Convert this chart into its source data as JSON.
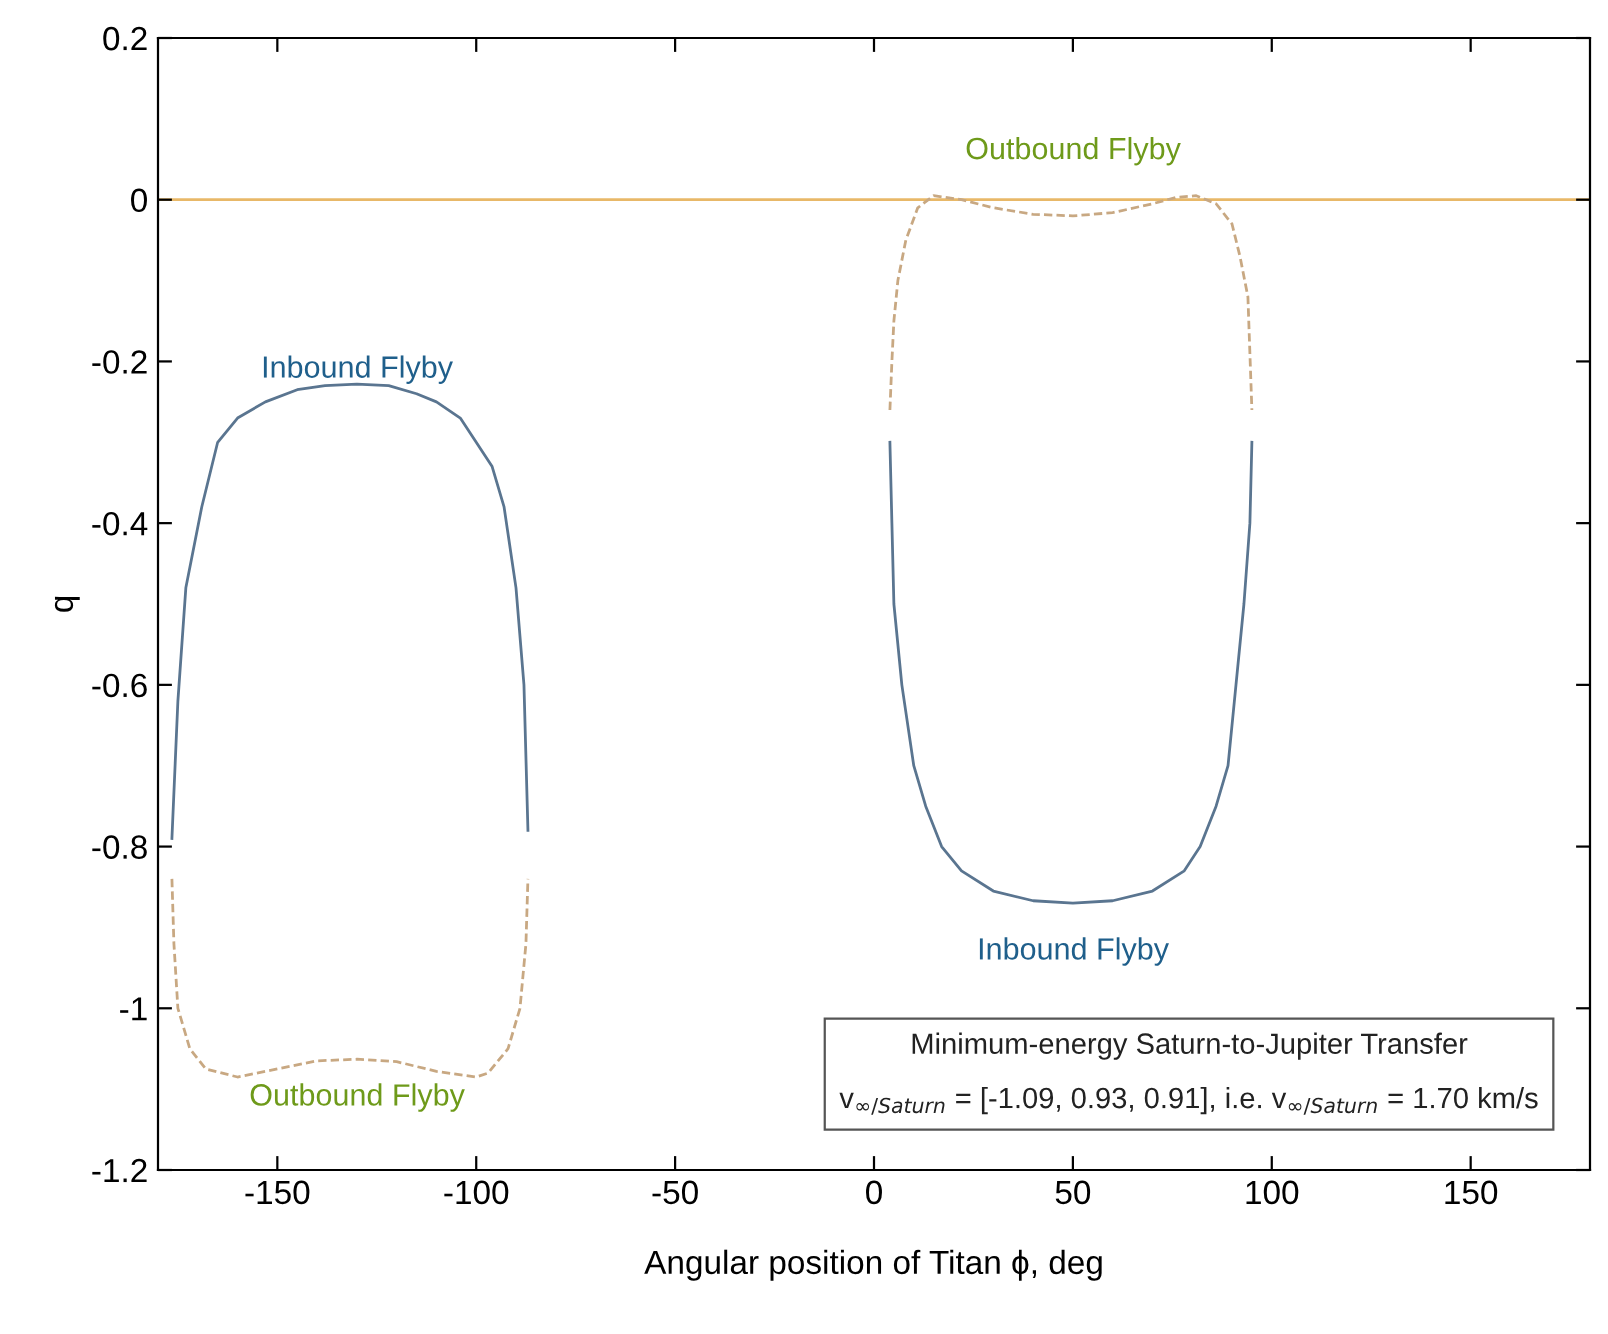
{
  "chart_data": {
    "type": "line",
    "xlabel": "Angular position of Titan ϕ, deg",
    "ylabel": "q",
    "xlim": [
      -180,
      180
    ],
    "ylim": [
      -1.2,
      0.2
    ],
    "xticks": [
      -150,
      -100,
      -50,
      0,
      50,
      100,
      150
    ],
    "yticks": [
      -1.2,
      -1,
      -0.8,
      -0.6,
      -0.4,
      -0.2,
      0,
      0.2
    ],
    "grid": false,
    "legend": false,
    "series": [
      {
        "color": "#5a7590",
        "line_style": "solid",
        "x": [
          -176.5,
          -175,
          -173,
          -169,
          -165,
          -160,
          -153,
          -145,
          -138,
          -130,
          -122,
          -115,
          -110,
          -104,
          -100,
          -96,
          -93,
          -90,
          -88,
          -87
        ],
        "values": [
          -0.79,
          -0.62,
          -0.48,
          -0.38,
          -0.3,
          -0.27,
          -0.25,
          -0.235,
          -0.23,
          -0.228,
          -0.23,
          -0.24,
          -0.25,
          -0.27,
          -0.3,
          -0.33,
          -0.38,
          -0.48,
          -0.6,
          -0.78
        ]
      },
      {
        "color": "#c8a882",
        "line_style": "dashed",
        "x": [
          -176.5,
          -176,
          -175,
          -172,
          -168,
          -160,
          -150,
          -140,
          -130,
          -120,
          -110,
          -100,
          -97,
          -92,
          -89,
          -87.5,
          -87
        ],
        "values": [
          -0.84,
          -0.92,
          -1.0,
          -1.05,
          -1.075,
          -1.085,
          -1.075,
          -1.065,
          -1.063,
          -1.066,
          -1.078,
          -1.085,
          -1.08,
          -1.05,
          -1.0,
          -0.92,
          -0.84
        ]
      },
      {
        "color": "#5a7590",
        "line_style": "solid",
        "x": [
          4,
          4.5,
          5,
          7,
          10,
          13,
          17,
          22,
          30,
          40,
          50,
          60,
          70,
          78,
          82,
          86,
          89,
          91,
          93,
          94.5,
          95
        ],
        "values": [
          -0.3,
          -0.4,
          -0.5,
          -0.6,
          -0.7,
          -0.75,
          -0.8,
          -0.83,
          -0.855,
          -0.867,
          -0.87,
          -0.867,
          -0.855,
          -0.83,
          -0.8,
          -0.75,
          -0.7,
          -0.6,
          -0.5,
          -0.4,
          -0.3
        ]
      },
      {
        "color": "#c8a882",
        "line_style": "dashed",
        "x": [
          4,
          4.5,
          5,
          6,
          8,
          11,
          15,
          22,
          30,
          40,
          50,
          60,
          70,
          76,
          81,
          86,
          90,
          92,
          94,
          95
        ],
        "values": [
          -0.26,
          -0.2,
          -0.15,
          -0.1,
          -0.05,
          -0.01,
          0.005,
          0.0,
          -0.01,
          -0.018,
          -0.02,
          -0.016,
          -0.005,
          0.003,
          0.005,
          -0.005,
          -0.03,
          -0.07,
          -0.12,
          -0.26
        ]
      }
    ],
    "ref_lines": [
      {
        "axis": "y",
        "value": 0,
        "color": "#e8b868",
        "line_style": "solid"
      }
    ],
    "annotations": [
      "Inbound Flyby",
      "Outbound Flyby",
      "Outbound Flyby",
      "Inbound Flyby",
      "Minimum-energy Saturn-to-Jupiter Transfer",
      "v$_{∞/Saturn}$ = [-1.09, 0.93, 0.91], i.e. v$_{∞/Saturn}$ = 1.70 km/s"
    ]
  }
}
